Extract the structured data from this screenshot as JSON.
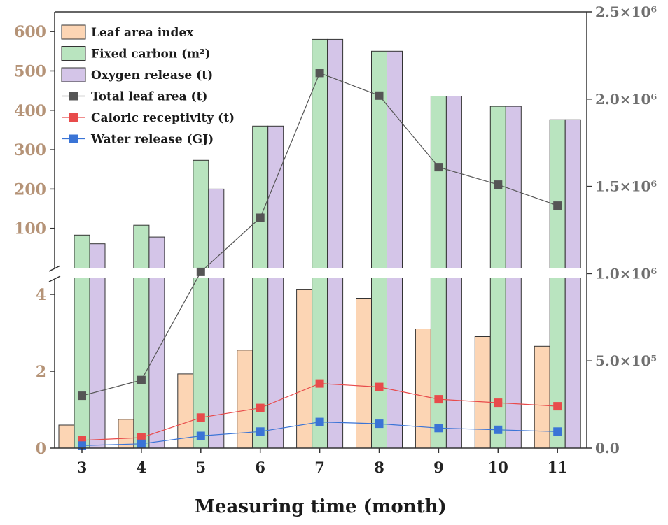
{
  "chart_data": {
    "type": "bar",
    "title": "",
    "xlabel": "Measuring time (month)",
    "categories": [
      "3",
      "4",
      "5",
      "6",
      "7",
      "8",
      "9",
      "10",
      "11"
    ],
    "left_axis": {
      "upper_segment": {
        "ylim": [
          0,
          650
        ],
        "ticks": [
          "100",
          "200",
          "300",
          "400",
          "500",
          "600"
        ]
      },
      "lower_segment": {
        "ylim": [
          0,
          4.4
        ],
        "ticks": [
          "0",
          "2",
          "4"
        ]
      },
      "broken": true
    },
    "right_axis": {
      "ylim": [
        0,
        2500000
      ],
      "ticks": [
        "0.0",
        "5.0×10⁵",
        "1.0×10⁶",
        "1.5×10⁶",
        "2.0×10⁶",
        "2.5×10⁶"
      ],
      "tick_values": [
        0,
        500000,
        1000000,
        1500000,
        2000000,
        2500000
      ]
    },
    "bar_series": [
      {
        "name": "Leaf area index",
        "axis": "left-lower",
        "color": "#fcd5b4",
        "values": [
          0.6,
          0.75,
          1.93,
          2.55,
          4.12,
          3.9,
          3.1,
          2.9,
          2.65
        ]
      },
      {
        "name": "Fixed carbon (m²)",
        "axis": "left-upper",
        "color": "#b9e4bf",
        "values": [
          83,
          108,
          273,
          360,
          580,
          550,
          436,
          410,
          376
        ]
      },
      {
        "name": "Oxygen release (t)",
        "axis": "left-upper",
        "color": "#d4c5e8",
        "values": [
          61,
          78,
          200,
          360,
          580,
          550,
          436,
          410,
          376
        ]
      }
    ],
    "line_series": [
      {
        "name": "Total leaf area (t)",
        "axis": "right",
        "color": "#555555",
        "values": [
          300000,
          390000,
          1010000,
          1320000,
          2150000,
          2020000,
          1610000,
          1510000,
          1390000
        ]
      },
      {
        "name": "Caloric receptivity (t)",
        "axis": "right",
        "color": "#e84b4b",
        "values": [
          45000,
          60000,
          175000,
          230000,
          370000,
          350000,
          280000,
          260000,
          240000
        ]
      },
      {
        "name": "Water release (GJ)",
        "axis": "right",
        "color": "#3a74d6",
        "values": [
          15000,
          25000,
          70000,
          95000,
          150000,
          140000,
          115000,
          105000,
          95000
        ]
      }
    ],
    "grid": false,
    "legend_position": "top-left"
  }
}
